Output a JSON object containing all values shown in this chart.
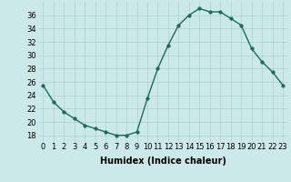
{
  "x": [
    0,
    1,
    2,
    3,
    4,
    5,
    6,
    7,
    8,
    9,
    10,
    11,
    12,
    13,
    14,
    15,
    16,
    17,
    18,
    19,
    20,
    21,
    22,
    23
  ],
  "y": [
    25.5,
    23,
    21.5,
    20.5,
    19.5,
    19,
    18.5,
    18,
    18,
    18.5,
    23.5,
    28,
    31.5,
    34.5,
    36,
    37,
    36.5,
    36.5,
    35.5,
    34.5,
    31,
    29,
    27.5,
    25.5
  ],
  "line_color": "#1a6b5a",
  "marker_color": "#1a6b5a",
  "bg_color": "#cce9e9",
  "grid_color": "#aad0d0",
  "xlabel": "Humidex (Indice chaleur)",
  "ylim": [
    17,
    38
  ],
  "xlim": [
    -0.5,
    23.5
  ],
  "yticks": [
    18,
    20,
    22,
    24,
    26,
    28,
    30,
    32,
    34,
    36
  ],
  "xticks": [
    0,
    1,
    2,
    3,
    4,
    5,
    6,
    7,
    8,
    9,
    10,
    11,
    12,
    13,
    14,
    15,
    16,
    17,
    18,
    19,
    20,
    21,
    22,
    23
  ],
  "xlabel_fontsize": 7,
  "tick_fontsize": 6,
  "linewidth": 1.0,
  "markersize": 2.5
}
